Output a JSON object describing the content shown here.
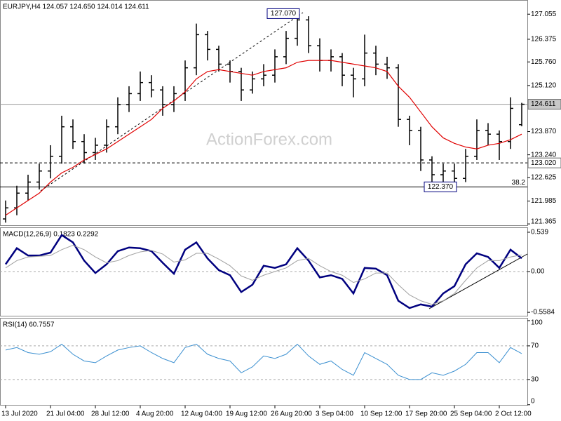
{
  "chart_data": [
    {
      "type": "ohlc",
      "title": "EURJPY,H4 124.057 124.650 124.014 124.611",
      "watermark": "ActionForex.com",
      "color": "#000000",
      "open": [
        121.5,
        121.8,
        122.2,
        122.5,
        122.8,
        123.2,
        124.0,
        123.6,
        123.3,
        123.5,
        124.0,
        124.6,
        124.9,
        125.2,
        125.0,
        124.6,
        124.9,
        125.6,
        126.5,
        126.1,
        125.7,
        125.5,
        125.0,
        125.3,
        125.4,
        125.9,
        126.4,
        126.9,
        126.2,
        125.8,
        125.9,
        125.4,
        125.3,
        126.0,
        125.7,
        125.6,
        124.2,
        123.9,
        123.1,
        122.7,
        122.8,
        122.6,
        123.2,
        123.9,
        123.8,
        123.6,
        124.057
      ],
      "high": [
        122.0,
        122.4,
        122.7,
        123.0,
        123.5,
        124.3,
        124.2,
        123.8,
        123.7,
        124.2,
        124.8,
        125.1,
        125.5,
        125.4,
        125.1,
        125.1,
        125.8,
        126.8,
        126.6,
        126.2,
        125.8,
        125.6,
        125.5,
        125.7,
        126.1,
        126.6,
        127.07,
        127.0,
        126.4,
        126.1,
        126.0,
        125.6,
        126.5,
        126.2,
        125.9,
        125.7,
        124.3,
        124.0,
        123.2,
        123.0,
        123.0,
        123.4,
        124.2,
        124.1,
        123.9,
        124.8,
        124.65
      ],
      "low": [
        121.4,
        121.6,
        122.0,
        122.3,
        122.6,
        123.0,
        123.4,
        123.0,
        123.1,
        123.3,
        123.8,
        124.4,
        124.7,
        124.8,
        124.3,
        124.4,
        124.7,
        125.4,
        125.8,
        125.5,
        125.2,
        124.7,
        124.9,
        125.1,
        125.2,
        125.7,
        126.2,
        126.0,
        125.5,
        125.5,
        125.1,
        124.8,
        125.1,
        125.4,
        125.3,
        124.0,
        123.5,
        122.8,
        122.5,
        122.5,
        122.37,
        122.5,
        123.1,
        123.5,
        123.1,
        123.4,
        124.014
      ],
      "close": [
        121.8,
        122.2,
        122.5,
        122.8,
        123.2,
        124.0,
        123.6,
        123.3,
        123.5,
        124.0,
        124.6,
        124.9,
        125.2,
        125.0,
        124.6,
        124.9,
        125.6,
        126.5,
        126.1,
        125.7,
        125.5,
        125.0,
        125.3,
        125.4,
        125.9,
        126.4,
        126.9,
        126.2,
        125.8,
        125.9,
        125.4,
        125.3,
        126.0,
        125.7,
        125.6,
        124.2,
        123.9,
        123.1,
        122.7,
        122.8,
        122.6,
        123.2,
        123.9,
        123.8,
        123.6,
        124.5,
        124.611
      ],
      "ma": {
        "color": "#e00000",
        "values": [
          121.6,
          121.8,
          122.0,
          122.2,
          122.5,
          122.75,
          122.9,
          123.1,
          123.25,
          123.4,
          123.6,
          123.8,
          124.0,
          124.2,
          124.5,
          124.7,
          124.95,
          125.3,
          125.5,
          125.55,
          125.5,
          125.45,
          125.4,
          125.5,
          125.55,
          125.6,
          125.75,
          125.8,
          125.8,
          125.8,
          125.75,
          125.7,
          125.65,
          125.6,
          125.5,
          125.1,
          124.8,
          124.4,
          124.0,
          123.7,
          123.55,
          123.45,
          123.4,
          123.5,
          123.55,
          123.65,
          123.8
        ]
      },
      "ylim": [
        121.31,
        127.44
      ],
      "yticks": [
        127.055,
        126.375,
        {
          "value": 125.76,
          "label": "125.760"
        },
        {
          "value": 125.12,
          "label": "125.120"
        },
        {
          "value": 123.87,
          "label": "123.870"
        },
        {
          "value": 123.24,
          "label": "123.240"
        },
        122.625,
        121.985,
        121.365
      ],
      "levels": [
        {
          "value": 124.611,
          "label": "124.611",
          "style": "solid",
          "box": "#c8c8c8"
        },
        {
          "value": 123.02,
          "label": "123.020",
          "style": "dashed",
          "box": "#ffffff"
        }
      ],
      "fib": {
        "value": 122.37,
        "label": "38.2"
      },
      "annotations": [
        {
          "value": 127.07,
          "label": "127.070"
        },
        {
          "value": 122.37,
          "label": "122.370"
        }
      ]
    },
    {
      "type": "line",
      "title": "MACD(12,26,9) 0.1823 0.2292",
      "series": [
        {
          "color": "#00007f",
          "width": 2.5,
          "values": [
            0.1,
            0.32,
            0.22,
            0.22,
            0.26,
            0.5,
            0.4,
            0.15,
            -0.02,
            0.1,
            0.28,
            0.33,
            0.32,
            0.28,
            0.12,
            -0.03,
            0.3,
            0.4,
            0.18,
            0.02,
            -0.05,
            -0.28,
            -0.18,
            0.08,
            0.05,
            0.1,
            0.32,
            0.15,
            -0.08,
            -0.05,
            -0.1,
            -0.3,
            0.05,
            0.04,
            -0.05,
            -0.4,
            -0.5,
            -0.45,
            -0.48,
            -0.3,
            -0.2,
            0.1,
            0.25,
            0.2,
            0.05,
            0.3,
            0.1823
          ]
        },
        {
          "color": "#a0a0a0",
          "width": 1,
          "values": [
            0.05,
            0.15,
            0.2,
            0.21,
            0.22,
            0.3,
            0.36,
            0.3,
            0.2,
            0.12,
            0.15,
            0.22,
            0.27,
            0.29,
            0.24,
            0.13,
            0.16,
            0.25,
            0.25,
            0.17,
            0.08,
            -0.06,
            -0.12,
            -0.05,
            0.0,
            0.05,
            0.15,
            0.18,
            0.08,
            0.0,
            -0.05,
            -0.15,
            -0.1,
            -0.02,
            -0.02,
            -0.18,
            -0.32,
            -0.4,
            -0.45,
            -0.4,
            -0.3,
            -0.12,
            0.05,
            0.15,
            0.15,
            0.2,
            0.2292
          ]
        }
      ],
      "ylim": [
        -0.615,
        0.606
      ],
      "yticks": [
        0.539,
        {
          "value": 0,
          "label": "0.00"
        },
        -0.5584
      ],
      "levels": [
        0
      ]
    },
    {
      "type": "line",
      "title": "RSI(14) 60.7557",
      "series": [
        {
          "color": "#3a8fd0",
          "width": 1,
          "values": [
            65,
            68,
            62,
            60,
            63,
            72,
            60,
            52,
            50,
            58,
            65,
            68,
            70,
            62,
            55,
            50,
            68,
            72,
            60,
            55,
            52,
            38,
            45,
            58,
            55,
            60,
            72,
            58,
            48,
            52,
            42,
            35,
            62,
            55,
            48,
            35,
            30,
            30,
            38,
            35,
            40,
            48,
            62,
            62,
            50,
            68,
            60.7557
          ]
        }
      ],
      "ylim": [
        -1,
        103.3
      ],
      "yticks": [
        100,
        70,
        30,
        0
      ],
      "levels": [
        70,
        30
      ],
      "xticks": [
        {
          "value": 0,
          "label": "13 Jul 2020"
        },
        {
          "value": 4,
          "label": "21 Jul 04:00"
        },
        {
          "value": 8,
          "label": "28 Jul 12:00"
        },
        {
          "value": 12,
          "label": "4 Aug 20:00"
        },
        {
          "value": 16,
          "label": "12 Aug 04:00"
        },
        {
          "value": 20,
          "label": "19 Aug 12:00"
        },
        {
          "value": 24,
          "label": "26 Aug 20:00"
        },
        {
          "value": 28,
          "label": "3 Sep 04:00"
        },
        {
          "value": 32,
          "label": "10 Sep 12:00"
        },
        {
          "value": 36,
          "label": "17 Sep 20:00"
        },
        {
          "value": 40,
          "label": "25 Sep 04:00"
        },
        {
          "value": 44,
          "label": "2 Oct 12:00"
        }
      ]
    }
  ]
}
